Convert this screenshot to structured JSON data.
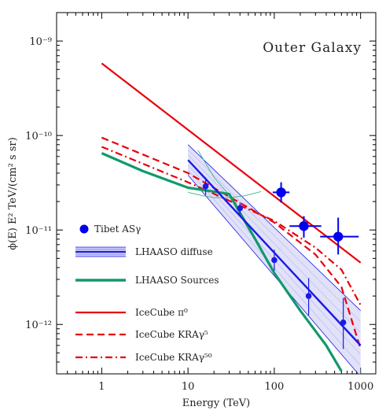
{
  "chart_data": {
    "type": "line",
    "title": "Outer Galaxy",
    "xlabel": "Energy (TeV)",
    "ylabel": "ϕ(E) E²  TeV/(cm² s sr)",
    "xscale": "log",
    "yscale": "log",
    "xlim": [
      0.3,
      1500
    ],
    "ylim": [
      3e-13,
      2e-09
    ],
    "x_ticks": [
      {
        "value": 1,
        "label": "1"
      },
      {
        "value": 10,
        "label": "10"
      },
      {
        "value": 100,
        "label": "100"
      },
      {
        "value": 1000,
        "label": "1000"
      }
    ],
    "y_ticks": [
      {
        "value": 1e-12,
        "label": "10⁻¹²"
      },
      {
        "value": 1e-11,
        "label": "10⁻¹¹"
      },
      {
        "value": 1e-10,
        "label": "10⁻¹⁰"
      },
      {
        "value": 1e-09,
        "label": "10⁻⁹"
      }
    ],
    "legend_placement": "bottom-left",
    "grid": false,
    "series": [
      {
        "name": "Tibet ASγ",
        "kind": "scatter",
        "color": "#0000ee",
        "points": [
          {
            "x": 120,
            "y": 2.5e-11,
            "xlo": 96,
            "xhi": 150,
            "ylo": 1.95e-11,
            "yhi": 3.2e-11
          },
          {
            "x": 220,
            "y": 1.1e-11,
            "xlo": 150,
            "xhi": 350,
            "ylo": 8.3e-12,
            "yhi": 1.4e-11
          },
          {
            "x": 550,
            "y": 8.5e-12,
            "xlo": 340,
            "xhi": 950,
            "ylo": 5.5e-12,
            "yhi": 1.35e-11
          }
        ]
      },
      {
        "name": "LHAASO diffuse",
        "kind": "scatter_with_band",
        "color": "#1a1ae6",
        "band_color": "#c9c9f2",
        "model": [
          {
            "x": 10,
            "y": 5.5e-11
          },
          {
            "x": 1000,
            "y": 6e-13
          }
        ],
        "band_upper": [
          {
            "x": 10,
            "y": 8e-11
          },
          {
            "x": 1000,
            "y": 1.4e-12
          }
        ],
        "band_lower": [
          {
            "x": 10,
            "y": 3.8e-11
          },
          {
            "x": 1000,
            "y": 2.8e-13
          }
        ],
        "points": [
          {
            "x": 16,
            "y": 2.9e-11,
            "ylo": 2.35e-11,
            "yhi": 3.6e-11
          },
          {
            "x": 40,
            "y": 1.7e-11,
            "ylo": 1.45e-11,
            "yhi": 1.95e-11
          },
          {
            "x": 100,
            "y": 4.8e-12,
            "ylo": 3.7e-12,
            "yhi": 6.2e-12
          },
          {
            "x": 250,
            "y": 2e-12,
            "ylo": 1.25e-12,
            "yhi": 3.1e-12
          },
          {
            "x": 630,
            "y": 1.05e-12,
            "ylo": 5.5e-13,
            "yhi": 1.9e-12
          }
        ]
      },
      {
        "name": "LHAASO Sources",
        "kind": "line",
        "color": "#11996b",
        "thin_color": "#3fb38a",
        "points": [
          {
            "x": 1,
            "y": 6.5e-11
          },
          {
            "x": 3,
            "y": 4.2e-11
          },
          {
            "x": 10,
            "y": 2.8e-11
          },
          {
            "x": 20,
            "y": 2.55e-11
          },
          {
            "x": 30,
            "y": 2.4e-11
          },
          {
            "x": 60,
            "y": 8e-12
          },
          {
            "x": 100,
            "y": 3.5e-12
          },
          {
            "x": 200,
            "y": 1.4e-12
          },
          {
            "x": 400,
            "y": 6e-13
          },
          {
            "x": 600,
            "y": 3.2e-13
          }
        ],
        "thin_arc": [
          {
            "x": 10,
            "y": 2.5e-11
          },
          {
            "x": 15,
            "y": 2.3e-11
          },
          {
            "x": 20,
            "y": 2.2e-11
          },
          {
            "x": 30,
            "y": 2.2e-11
          },
          {
            "x": 45,
            "y": 2.3e-11
          },
          {
            "x": 70,
            "y": 2.55e-11
          }
        ],
        "thin_diag": [
          {
            "x": 13,
            "y": 7e-11
          },
          {
            "x": 20,
            "y": 3.6e-11
          },
          {
            "x": 30,
            "y": 2.35e-11
          }
        ]
      },
      {
        "name": "IceCube π⁰",
        "kind": "line",
        "dash": "solid",
        "color": "#e8000b",
        "points": [
          {
            "x": 1,
            "y": 5.8e-10
          },
          {
            "x": 1000,
            "y": 4.5e-12
          }
        ]
      },
      {
        "name": "IceCube KRAγ⁵",
        "kind": "line",
        "dash": "dashed",
        "color": "#e8000b",
        "points": [
          {
            "x": 1,
            "y": 9.5e-11
          },
          {
            "x": 10,
            "y": 4e-11
          },
          {
            "x": 100,
            "y": 1.2e-11
          },
          {
            "x": 300,
            "y": 5.5e-12
          },
          {
            "x": 600,
            "y": 2.5e-12
          },
          {
            "x": 1000,
            "y": 5.5e-13
          }
        ]
      },
      {
        "name": "IceCube KRAγ⁵⁰",
        "kind": "line",
        "dash": "dashdot",
        "color": "#e8000b",
        "points": [
          {
            "x": 1,
            "y": 7.6e-11
          },
          {
            "x": 10,
            "y": 3.2e-11
          },
          {
            "x": 100,
            "y": 1.25e-11
          },
          {
            "x": 300,
            "y": 6.5e-12
          },
          {
            "x": 600,
            "y": 3.8e-12
          },
          {
            "x": 1000,
            "y": 1.6e-12
          }
        ]
      }
    ],
    "legend": [
      {
        "label": "Tibet ASγ",
        "marker": "dot"
      },
      {
        "label": "LHAASO diffuse",
        "marker": "band"
      },
      {
        "label": "LHAASO Sources",
        "marker": "thick-line"
      },
      {
        "label": "IceCube π⁰",
        "marker": "solid"
      },
      {
        "label": "IceCube KRAγ⁵",
        "marker": "dashed"
      },
      {
        "label": "IceCube KRAγ⁵⁰",
        "marker": "dashdot"
      }
    ]
  }
}
